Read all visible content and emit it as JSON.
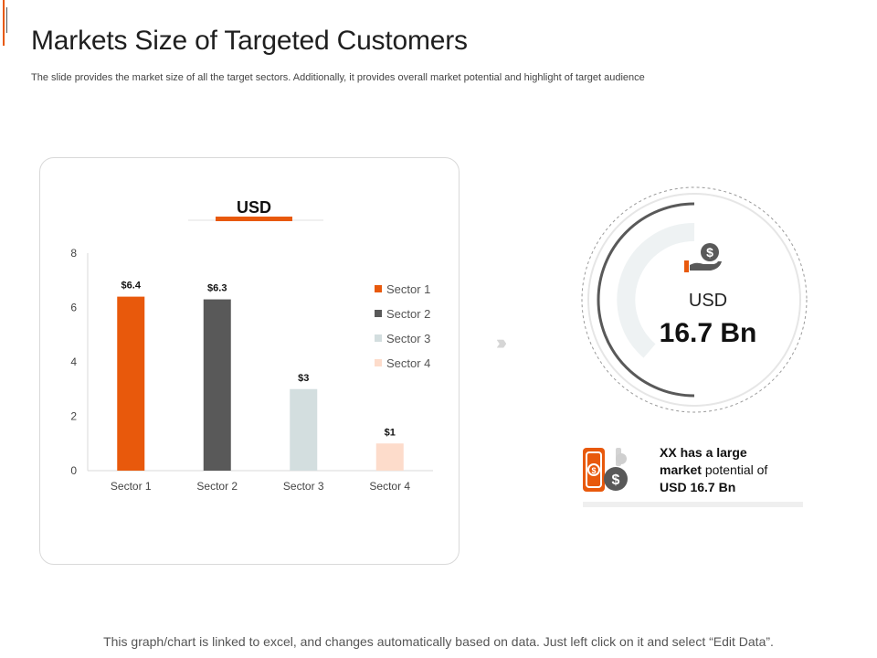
{
  "slide": {
    "title": "Markets Size of Targeted Customers",
    "subtitle": "The slide provides the market size of all the target sectors. Additionally, it provides overall market potential and highlight of target audience",
    "footer": "This graph/chart is linked to excel, and changes automatically based on data.  Just left click on it and select “Edit Data”."
  },
  "chart_data": {
    "type": "bar",
    "title": "USD",
    "categories": [
      "Sector 1",
      "Sector 2",
      "Sector 3",
      "Sector 4"
    ],
    "values": [
      6.4,
      6.3,
      3,
      1
    ],
    "labels": [
      "$6.4",
      "$6.3",
      "$3",
      "$1"
    ],
    "colors": [
      "#E8590C",
      "#595959",
      "#D3DEDF",
      "#FDDCCB"
    ],
    "yticks": [
      0,
      2,
      4,
      6,
      8
    ],
    "ylim": [
      0,
      8
    ],
    "xlabel": "",
    "ylabel": "",
    "legend": [
      "Sector 1",
      "Sector 2",
      "Sector 3",
      "Sector 4"
    ],
    "legend_position": "right",
    "title_underline_color": "#E8590C"
  },
  "market": {
    "label": "USD",
    "value": "16.7 Bn",
    "note_prefix": "XX has a large",
    "note_bold": "market",
    "note_middle": "potential of",
    "note_suffix": "USD 16.7 Bn"
  },
  "icons": {
    "money_hand": "money-hand-icon",
    "currency_exchange": "currency-exchange-icon",
    "chevrons": "chevron-right-icon"
  },
  "colors": {
    "accent": "#E8590C",
    "dark": "#595959"
  }
}
